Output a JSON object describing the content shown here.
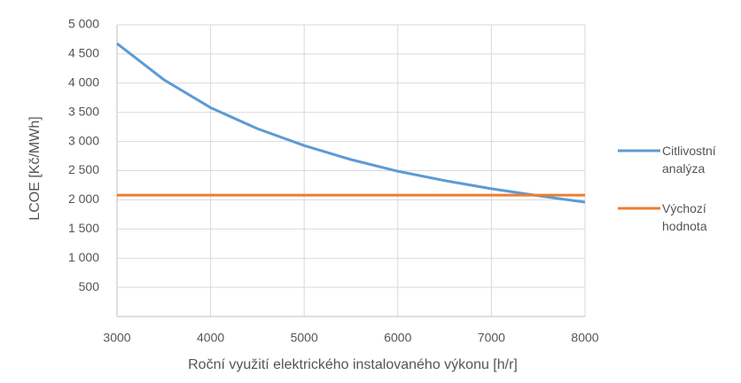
{
  "chart_data": {
    "type": "line",
    "x_label": "Roční využití elektrického instalovaného výkonu [h/r]",
    "y_label": "LCOE [Kč/MWh]",
    "x": [
      3000,
      3500,
      4000,
      4500,
      5000,
      5500,
      6000,
      6500,
      7000,
      7500,
      8000
    ],
    "series": [
      {
        "name": "Citlivostní analýza",
        "color": "#5b9bd5",
        "values": [
          4680,
          4060,
          3580,
          3220,
          2930,
          2690,
          2490,
          2330,
          2190,
          2070,
          1960
        ]
      },
      {
        "name": "Výchozí hodnota",
        "color": "#ed7d31",
        "values": [
          2080,
          2080,
          2080,
          2080,
          2080,
          2080,
          2080,
          2080,
          2080,
          2080,
          2080
        ]
      }
    ],
    "xlim": [
      3000,
      8000
    ],
    "xticks": [
      3000,
      4000,
      5000,
      6000,
      7000,
      8000
    ],
    "ylim": [
      0,
      5000
    ],
    "yticks": [
      500,
      {
        "value": 1000,
        "label": "1 000"
      },
      {
        "value": 1500,
        "label": "1 500"
      },
      {
        "value": 2000,
        "label": "2 000"
      },
      {
        "value": 2500,
        "label": "2 500"
      },
      {
        "value": 3000,
        "label": "3 000"
      },
      {
        "value": 3500,
        "label": "3 500"
      },
      {
        "value": 4000,
        "label": "4 000"
      },
      {
        "value": 4500,
        "label": "4 500"
      },
      {
        "value": 5000,
        "label": "5 000"
      }
    ],
    "grid": true,
    "legend": "right"
  }
}
